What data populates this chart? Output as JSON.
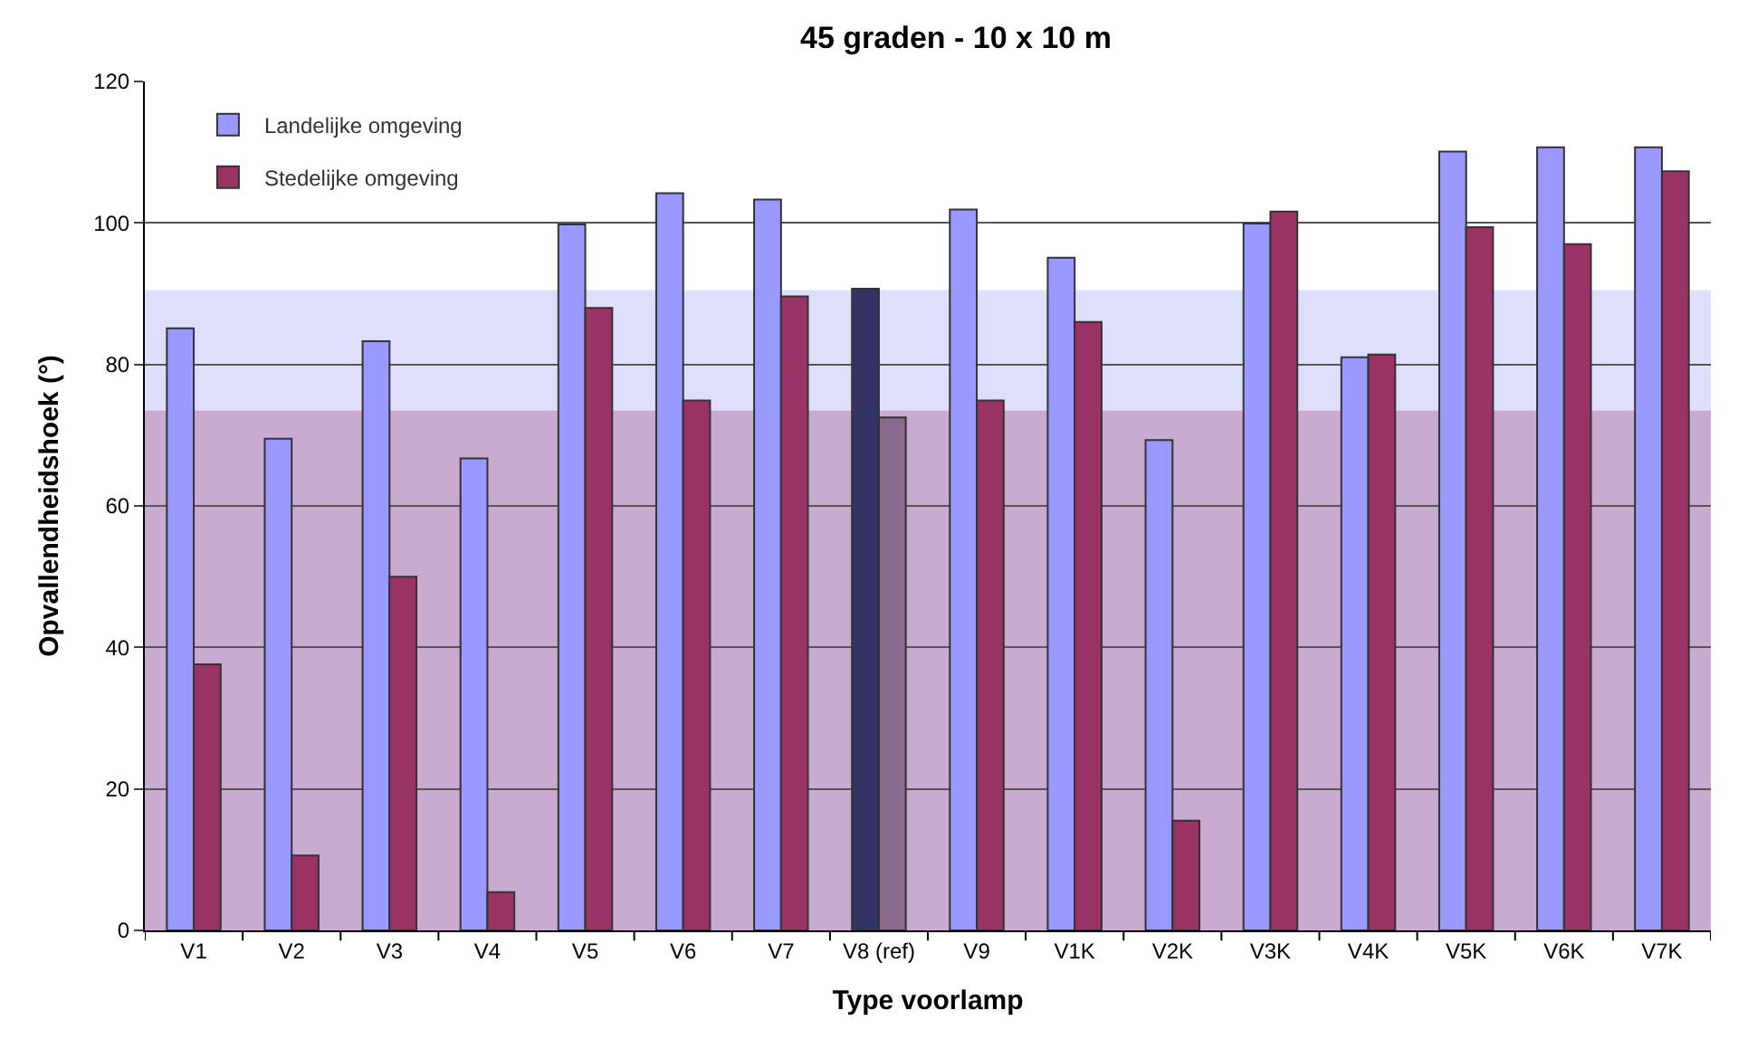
{
  "chart_data": {
    "type": "bar",
    "title": "45 graden - 10 x 10 m",
    "xlabel": "Type voorlamp",
    "ylabel": "Opvallendheidshoek (°)",
    "categories": [
      "V1",
      "V2",
      "V3",
      "V4",
      "V5",
      "V6",
      "V7",
      "V8 (ref)",
      "V9",
      "V1K",
      "V2K",
      "V3K",
      "V4K",
      "V5K",
      "V6K",
      "V7K"
    ],
    "series": [
      {
        "name": "Landelijke omgeving",
        "color": "#9999ff",
        "colors": [
          null,
          null,
          null,
          null,
          null,
          null,
          null,
          "#333366",
          null,
          null,
          null,
          null,
          null,
          null,
          null,
          null
        ],
        "values": [
          85.1,
          69.5,
          83.3,
          66.7,
          99.8,
          104.2,
          103.3,
          90.7,
          101.9,
          95.1,
          69.3,
          99.9,
          81.0,
          110.1,
          110.7,
          110.7
        ]
      },
      {
        "name": "Stedelijke omgeving",
        "color": "#993366",
        "colors": [
          null,
          null,
          null,
          null,
          null,
          null,
          null,
          "#8a6a8e",
          null,
          null,
          null,
          null,
          null,
          null,
          null,
          null
        ],
        "values": [
          37.6,
          10.6,
          50.0,
          5.4,
          88.0,
          74.9,
          89.6,
          72.5,
          74.9,
          86.0,
          15.5,
          101.6,
          81.4,
          99.4,
          97.0,
          107.3
        ]
      }
    ],
    "ylim": [
      0,
      120
    ],
    "yticks": [
      0,
      20,
      40,
      60,
      80,
      100,
      120
    ],
    "grid": "y",
    "legend": "top left",
    "bands": [
      {
        "axis": "y",
        "from": 73.5,
        "to": 90.5,
        "color": "#dfdffd"
      },
      {
        "axis": "y",
        "from": 0,
        "to": 73.5,
        "color": "#c9aad0"
      }
    ]
  }
}
